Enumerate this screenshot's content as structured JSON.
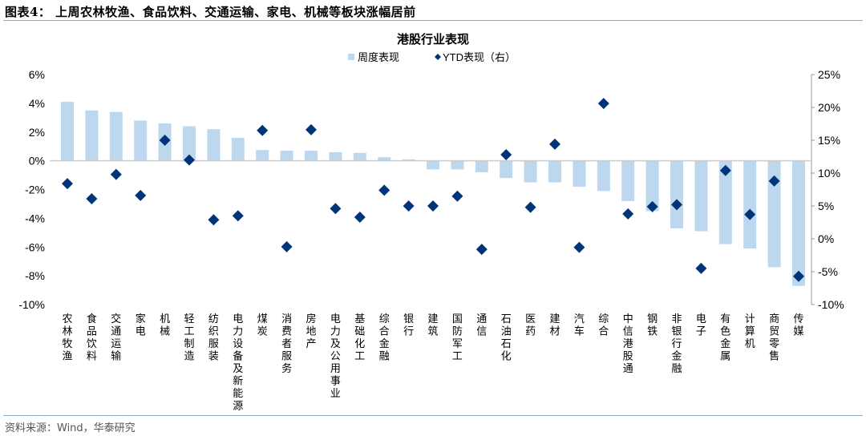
{
  "header": {
    "title": "图表4：  上周农林牧渔、食品饮料、交通运输、家电、机械等板块涨幅居前"
  },
  "footer": {
    "source": "资料来源：Wind，华泰研究"
  },
  "chart_data": {
    "type": "bar+scatter",
    "title": "港股行业表现",
    "legend_position": "top-center",
    "categories": [
      "农林牧渔",
      "食品饮料",
      "交通运输",
      "家电",
      "机械",
      "轻工制造",
      "纺织服装",
      "电力设备及新能源",
      "煤炭",
      "消费者服务",
      "房地产",
      "电力及公用事业",
      "基础化工",
      "综合金融",
      "银行",
      "建筑",
      "国防军工",
      "通信",
      "石油石化",
      "医药",
      "建材",
      "汽车",
      "综合",
      "中信港股通",
      "钢铁",
      "非银行金融",
      "电子",
      "有色金属",
      "计算机",
      "商贸零售",
      "传媒"
    ],
    "series": [
      {
        "name": "周度表现",
        "type": "bar",
        "axis": "left",
        "color": "#bdd7ee",
        "values": [
          4.1,
          3.5,
          3.4,
          2.8,
          2.6,
          2.4,
          2.2,
          1.6,
          0.75,
          0.7,
          0.7,
          0.6,
          0.55,
          0.25,
          0.1,
          -0.6,
          -0.6,
          -0.8,
          -1.2,
          -1.5,
          -1.5,
          -1.8,
          -2.1,
          -2.8,
          -3.5,
          -4.7,
          -4.9,
          -5.8,
          -6.1,
          -7.4,
          -8.7
        ]
      },
      {
        "name": "YTD表现（右）",
        "type": "scatter",
        "marker": "diamond",
        "axis": "right",
        "color": "#003478",
        "values": [
          8.4,
          6.1,
          9.8,
          6.6,
          15.0,
          12.0,
          2.9,
          3.5,
          16.5,
          -1.2,
          16.6,
          4.6,
          3.3,
          7.4,
          5.0,
          5.0,
          6.5,
          -1.6,
          12.8,
          4.8,
          14.4,
          -1.3,
          20.6,
          3.8,
          4.9,
          5.2,
          -4.5,
          10.4,
          3.7,
          8.8,
          -5.7
        ]
      }
    ],
    "y_left": {
      "range": [
        -10,
        6
      ],
      "ticks": [
        "6%",
        "4%",
        "2%",
        "0%",
        "-2%",
        "-4%",
        "-6%",
        "-8%",
        "-10%"
      ],
      "tick_values": [
        6,
        4,
        2,
        0,
        -2,
        -4,
        -6,
        -8,
        -10
      ]
    },
    "y_right": {
      "range": [
        -10,
        25
      ],
      "ticks": [
        "25%",
        "20%",
        "15%",
        "10%",
        "5%",
        "0%",
        "-5%",
        "-10%"
      ],
      "tick_values": [
        25,
        20,
        15,
        10,
        5,
        0,
        -5,
        -10
      ]
    },
    "grid": false
  }
}
